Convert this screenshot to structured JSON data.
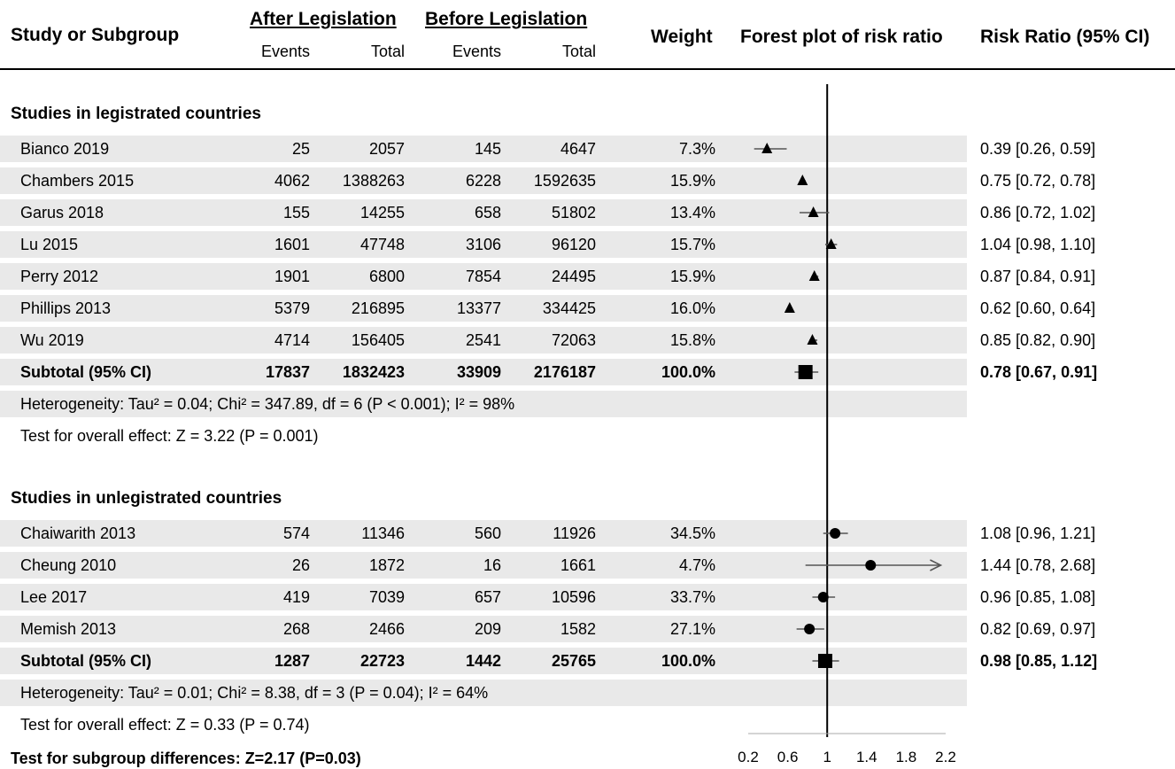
{
  "headers": {
    "study": "Study or Subgroup",
    "after": "After Legislation",
    "before": "Before Legislation",
    "events": "Events",
    "total": "Total",
    "weight": "Weight",
    "forest": "Forest plot of risk ratio",
    "rr": "Risk Ratio (95% CI)"
  },
  "groups": [
    {
      "title": "Studies in legistrated countries",
      "rows": [
        {
          "study": "Bianco 2019",
          "e1": "25",
          "t1": "2057",
          "e2": "145",
          "t2": "4647",
          "w": "7.3%",
          "ci": "0.39 [0.26, 0.59]"
        },
        {
          "study": "Chambers 2015",
          "e1": "4062",
          "t1": "1388263",
          "e2": "6228",
          "t2": "1592635",
          "w": "15.9%",
          "ci": "0.75 [0.72, 0.78]"
        },
        {
          "study": "Garus 2018",
          "e1": "155",
          "t1": "14255",
          "e2": "658",
          "t2": "51802",
          "w": "13.4%",
          "ci": "0.86 [0.72, 1.02]"
        },
        {
          "study": "Lu 2015",
          "e1": "1601",
          "t1": "47748",
          "e2": "3106",
          "t2": "96120",
          "w": "15.7%",
          "ci": "1.04 [0.98, 1.10]"
        },
        {
          "study": "Perry 2012",
          "e1": "1901",
          "t1": "6800",
          "e2": "7854",
          "t2": "24495",
          "w": "15.9%",
          "ci": "0.87 [0.84, 0.91]"
        },
        {
          "study": "Phillips 2013",
          "e1": "5379",
          "t1": "216895",
          "e2": "13377",
          "t2": "334425",
          "w": "16.0%",
          "ci": "0.62 [0.60, 0.64]"
        },
        {
          "study": "Wu 2019",
          "e1": "4714",
          "t1": "156405",
          "e2": "2541",
          "t2": "72063",
          "w": "15.8%",
          "ci": "0.85 [0.82, 0.90]"
        }
      ],
      "subtotal": {
        "label": "Subtotal (95% CI)",
        "e1": "17837",
        "t1": "1832423",
        "e2": "33909",
        "t2": "2176187",
        "w": "100.0%",
        "ci": "0.78 [0.67, 0.91]"
      },
      "heterogeneity": "Heterogeneity: Tau² = 0.04; Chi² = 347.89, df = 6 (P < 0.001); I² = 98%",
      "overall": "Test for overall effect: Z = 3.22 (P = 0.001)"
    },
    {
      "title": "Studies in unlegistrated countries",
      "rows": [
        {
          "study": "Chaiwarith 2013",
          "e1": "574",
          "t1": "11346",
          "e2": "560",
          "t2": "11926",
          "w": "34.5%",
          "ci": "1.08 [0.96, 1.21]"
        },
        {
          "study": "Cheung 2010",
          "e1": "26",
          "t1": "1872",
          "e2": "16",
          "t2": "1661",
          "w": "4.7%",
          "ci": "1.44 [0.78, 2.68]"
        },
        {
          "study": "Lee 2017",
          "e1": "419",
          "t1": "7039",
          "e2": "657",
          "t2": "10596",
          "w": "33.7%",
          "ci": "0.96 [0.85, 1.08]"
        },
        {
          "study": "Memish 2013",
          "e1": "268",
          "t1": "2466",
          "e2": "209",
          "t2": "1582",
          "w": "27.1%",
          "ci": "0.82 [0.69, 0.97]"
        }
      ],
      "subtotal": {
        "label": "Subtotal (95% CI)",
        "e1": "1287",
        "t1": "22723",
        "e2": "1442",
        "t2": "25765",
        "w": "100.0%",
        "ci": "0.98 [0.85, 1.12]"
      },
      "heterogeneity": "Heterogeneity: Tau² = 0.01; Chi² = 8.38, df = 3 (P = 0.04); I² = 64%",
      "overall": "Test for overall effect: Z = 0.33 (P = 0.74)"
    }
  ],
  "footer": "Test for subgroup differences: Z=2.17 (P=0.03)",
  "chart_data": {
    "type": "forest",
    "xlim": [
      0.2,
      2.2
    ],
    "xticks": [
      "0.2",
      "0.6",
      "1",
      "1.4",
      "1.8",
      "2.2"
    ],
    "reference_line": 1,
    "series": [
      {
        "name": "Studies in legistrated countries",
        "marker": "triangle",
        "points": [
          {
            "label": "Bianco 2019",
            "rr": 0.39,
            "lo": 0.26,
            "hi": 0.59
          },
          {
            "label": "Chambers 2015",
            "rr": 0.75,
            "lo": 0.72,
            "hi": 0.78
          },
          {
            "label": "Garus 2018",
            "rr": 0.86,
            "lo": 0.72,
            "hi": 1.02
          },
          {
            "label": "Lu 2015",
            "rr": 1.04,
            "lo": 0.98,
            "hi": 1.1
          },
          {
            "label": "Perry 2012",
            "rr": 0.87,
            "lo": 0.84,
            "hi": 0.91
          },
          {
            "label": "Phillips 2013",
            "rr": 0.62,
            "lo": 0.6,
            "hi": 0.64
          },
          {
            "label": "Wu 2019",
            "rr": 0.85,
            "lo": 0.82,
            "hi": 0.9
          }
        ],
        "subtotal": {
          "rr": 0.78,
          "lo": 0.67,
          "hi": 0.91
        }
      },
      {
        "name": "Studies in unlegistrated countries",
        "marker": "circle",
        "points": [
          {
            "label": "Chaiwarith 2013",
            "rr": 1.08,
            "lo": 0.96,
            "hi": 1.21
          },
          {
            "label": "Cheung 2010",
            "rr": 1.44,
            "lo": 0.78,
            "hi": 2.68
          },
          {
            "label": "Lee 2017",
            "rr": 0.96,
            "lo": 0.85,
            "hi": 1.08
          },
          {
            "label": "Memish 2013",
            "rr": 0.82,
            "lo": 0.69,
            "hi": 0.97
          }
        ],
        "subtotal": {
          "rr": 0.98,
          "lo": 0.85,
          "hi": 1.12
        }
      }
    ]
  }
}
